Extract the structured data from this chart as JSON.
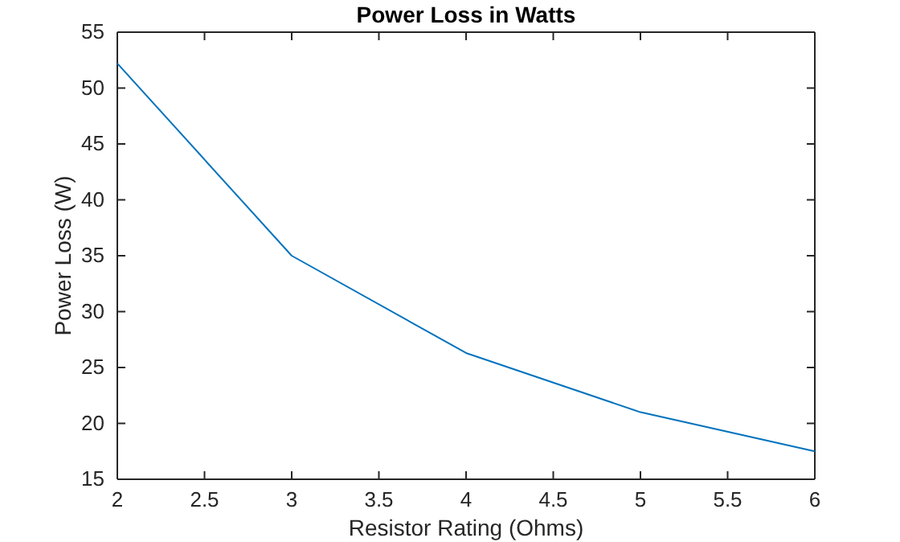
{
  "chart_data": {
    "type": "line",
    "title": "Power Loss in Watts",
    "xlabel": "Resistor Rating (Ohms)",
    "ylabel": "Power Loss (W)",
    "x": [
      2,
      3,
      4,
      5,
      6
    ],
    "series": [
      {
        "color": "#0072bd",
        "values": [
          52.2,
          35,
          26.3,
          21,
          17.5
        ]
      }
    ],
    "xlim": [
      2,
      6
    ],
    "xticks": [
      2,
      2.5,
      3,
      3.5,
      4,
      4.5,
      5,
      5.5,
      6
    ],
    "ylim": [
      15,
      55
    ],
    "yticks": [
      15,
      20,
      25,
      30,
      35,
      40,
      45,
      50,
      55
    ],
    "grid": false,
    "marker": "none",
    "line_style": "solid"
  }
}
